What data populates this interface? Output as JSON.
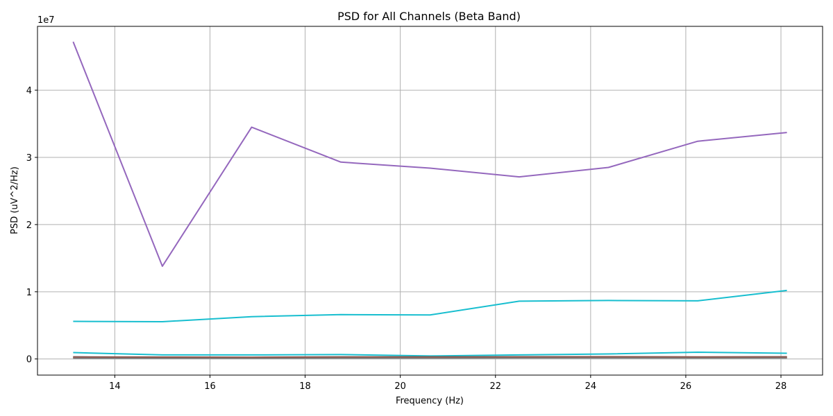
{
  "chart_data": {
    "type": "line",
    "title": "PSD for All Channels (Beta Band)",
    "xlabel": "Frequency (Hz)",
    "ylabel": "PSD (uV^2/Hz)",
    "y_offset_label": "1e7",
    "xlim": [
      12.375,
      28.875
    ],
    "ylim": [
      -2400000,
      49500000
    ],
    "x_ticks": [
      14,
      16,
      18,
      20,
      22,
      24,
      26,
      28
    ],
    "x_tick_labels": [
      "14",
      "16",
      "18",
      "20",
      "22",
      "24",
      "26",
      "28"
    ],
    "y_ticks": [
      0,
      10000000,
      20000000,
      30000000,
      40000000
    ],
    "y_tick_labels": [
      "0",
      "1",
      "2",
      "3",
      "4"
    ],
    "grid": true,
    "x": [
      13.125,
      15.0,
      16.875,
      18.75,
      20.625,
      22.5,
      24.375,
      26.25,
      28.125
    ],
    "series": [
      {
        "color": "#9467bd",
        "values": [
          47200000,
          13800000,
          34500000,
          29300000,
          28400000,
          27100000,
          28500000,
          32400000,
          33700000
        ]
      },
      {
        "color": "#17becf",
        "values": [
          5600000,
          5550000,
          6300000,
          6600000,
          6550000,
          8600000,
          8700000,
          8650000,
          10200000
        ]
      },
      {
        "color": "#17becf",
        "values": [
          950000,
          600000,
          600000,
          650000,
          450000,
          600000,
          750000,
          1000000,
          850000
        ]
      },
      {
        "color": "#1f77b4",
        "values": [
          300000,
          250000,
          200000,
          250000,
          250000,
          300000,
          300000,
          280000,
          300000
        ]
      },
      {
        "color": "#ff7f0e",
        "values": [
          250000,
          200000,
          180000,
          220000,
          220000,
          250000,
          260000,
          240000,
          250000
        ]
      },
      {
        "color": "#2ca02c",
        "values": [
          200000,
          180000,
          160000,
          200000,
          200000,
          220000,
          230000,
          210000,
          220000
        ]
      },
      {
        "color": "#d62728",
        "values": [
          220000,
          190000,
          170000,
          210000,
          210000,
          230000,
          240000,
          220000,
          230000
        ]
      },
      {
        "color": "#bcbd22",
        "values": [
          150000,
          140000,
          130000,
          160000,
          160000,
          180000,
          190000,
          170000,
          180000
        ]
      },
      {
        "color": "#e377c2",
        "values": [
          180000,
          160000,
          150000,
          180000,
          180000,
          200000,
          210000,
          190000,
          200000
        ]
      },
      {
        "color": "#7f7f7f",
        "values": [
          120000,
          110000,
          100000,
          130000,
          130000,
          150000,
          160000,
          140000,
          150000
        ]
      },
      {
        "color": "#8c564b",
        "values": [
          300000,
          280000,
          260000,
          300000,
          300000,
          320000,
          330000,
          310000,
          320000
        ]
      }
    ]
  }
}
